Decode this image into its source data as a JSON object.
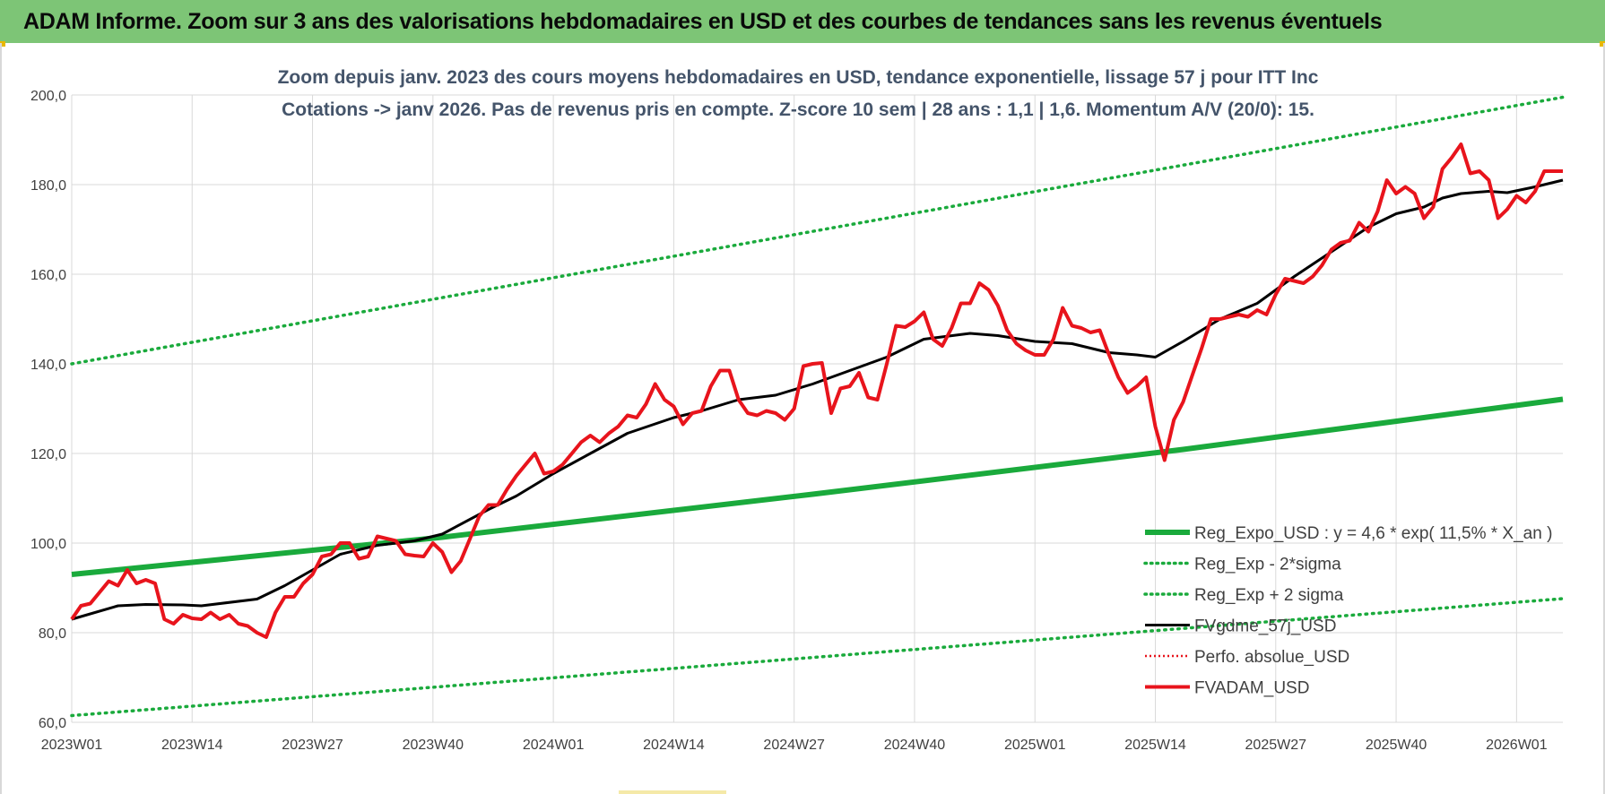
{
  "header": {
    "title": "ADAM Informe. Zoom sur 3 ans des valorisations hebdomadaires en USD et des courbes de tendances sans les revenus éventuels"
  },
  "colors": {
    "header_bg": "#7dc576",
    "trend_green": "#1aaa3c",
    "price_red": "#e8141c",
    "smooth_black": "#000000",
    "grid": "#d9d9d9",
    "axis_text": "#404040",
    "subtitle_text": "#44546a"
  },
  "chart_data": {
    "type": "line",
    "subtitle_line1": "Zoom depuis janv. 2023 des cours moyens hebdomadaires en USD, tendance exponentielle, lissage 57 j pour ITT Inc",
    "subtitle_line2": "Cotations -> janv 2026. Pas de revenus pris en compte. Z-score 10 sem  | 28 ans : 1,1 | 1,6. Momentum A/V (20/0): 15.",
    "ylim": [
      60,
      200
    ],
    "ytick_labels": [
      "60,0",
      "80,0",
      "100,0",
      "120,0",
      "140,0",
      "160,0",
      "180,0",
      "200,0"
    ],
    "ytick_values": [
      60,
      80,
      100,
      120,
      140,
      160,
      180,
      200
    ],
    "x_count": 162,
    "xtick_labels": [
      "2023W01",
      "2023W14",
      "2023W27",
      "2023W40",
      "2024W01",
      "2024W14",
      "2024W27",
      "2024W40",
      "2025W01",
      "2025W14",
      "2025W27",
      "2025W40",
      "2026W01"
    ],
    "xtick_indices": [
      0,
      13,
      26,
      39,
      52,
      65,
      78,
      91,
      104,
      117,
      130,
      143,
      156
    ],
    "legend": [
      {
        "key": "reg_expo",
        "label": "Reg_Expo_USD : y = 4,6 * exp( 11,5% *  X_an )",
        "style": "thick"
      },
      {
        "key": "reg_minus",
        "label": "Reg_Exp - 2*sigma",
        "style": "dotted"
      },
      {
        "key": "reg_plus",
        "label": "Reg_Exp + 2 sigma",
        "style": "dotted"
      },
      {
        "key": "fvgdme",
        "label": "FVgdme_57j_USD",
        "style": "solid"
      },
      {
        "key": "perfo",
        "label": "Perfo. absolue_USD",
        "style": "dotted-red"
      },
      {
        "key": "fvadam",
        "label": "FVADAM_USD",
        "style": "solid-red"
      }
    ],
    "series": [
      {
        "name": "Reg_Expo_USD",
        "key": "reg_expo",
        "x": [
          0,
          40,
          80,
          120,
          161
        ],
        "values": [
          93,
          101.3,
          110.9,
          120.9,
          132.1
        ]
      },
      {
        "name": "Reg_Exp - 2*sigma",
        "key": "reg_minus",
        "x": [
          0,
          161
        ],
        "values": [
          61.5,
          87.6
        ]
      },
      {
        "name": "Reg_Exp + 2 sigma",
        "key": "reg_plus",
        "x": [
          0,
          161
        ],
        "values": [
          140,
          199.5
        ]
      },
      {
        "name": "FVgdme_57j_USD",
        "key": "fvgdme",
        "x": [
          0,
          5,
          8,
          12,
          14,
          20,
          23,
          26,
          29,
          33,
          37,
          40,
          45,
          48,
          52,
          56,
          60,
          65,
          68,
          72,
          76,
          80,
          84,
          88,
          92,
          97,
          100,
          104,
          108,
          112,
          115,
          117,
          120,
          124,
          128,
          132,
          136,
          140,
          143,
          146,
          148,
          150,
          153,
          155,
          158,
          161
        ],
        "values": [
          83,
          86,
          86.3,
          86.2,
          86,
          87.5,
          90.5,
          94,
          97.5,
          99.5,
          100.5,
          102,
          107.5,
          110.5,
          115.5,
          120,
          124.5,
          128,
          129.5,
          132,
          133,
          135.5,
          138.5,
          141.5,
          145.5,
          146.8,
          146.3,
          145,
          144.5,
          142.5,
          142,
          141.5,
          145,
          150,
          153.5,
          159.5,
          165,
          170.5,
          173.5,
          175,
          177,
          178,
          178.5,
          178.2,
          179.5,
          181
        ]
      },
      {
        "name": "Perfo. absolue_USD",
        "key": "perfo",
        "x": [],
        "values": []
      },
      {
        "name": "FVADAM_USD",
        "key": "fvadam",
        "x": [
          0,
          1,
          2,
          3,
          4,
          5,
          6,
          7,
          8,
          9,
          10,
          11,
          12,
          13,
          14,
          15,
          16,
          17,
          18,
          19,
          20,
          21,
          22,
          23,
          24,
          25,
          26,
          27,
          28,
          29,
          30,
          31,
          32,
          33,
          34,
          35,
          36,
          37,
          38,
          39,
          40,
          41,
          42,
          43,
          44,
          45,
          46,
          47,
          48,
          49,
          50,
          51,
          52,
          53,
          54,
          55,
          56,
          57,
          58,
          59,
          60,
          61,
          62,
          63,
          64,
          65,
          66,
          67,
          68,
          69,
          70,
          71,
          72,
          73,
          74,
          75,
          76,
          77,
          78,
          79,
          80,
          81,
          82,
          83,
          84,
          85,
          86,
          87,
          88,
          89,
          90,
          91,
          92,
          93,
          94,
          95,
          96,
          97,
          98,
          99,
          100,
          101,
          102,
          103,
          104,
          105,
          106,
          107,
          108,
          109,
          110,
          111,
          112,
          113,
          114,
          115,
          116,
          117,
          118,
          119,
          120,
          121,
          122,
          123,
          124,
          125,
          126,
          127,
          128,
          129,
          130,
          131,
          132,
          133,
          134,
          135,
          136,
          137,
          138,
          139,
          140,
          141,
          142,
          143,
          144,
          145,
          146,
          147,
          148,
          149,
          150,
          151,
          152,
          153,
          154,
          155,
          156,
          157,
          158,
          159,
          160,
          161
        ],
        "values": [
          83,
          86,
          86.5,
          89,
          91.5,
          90.5,
          94,
          91,
          91.8,
          91,
          83,
          82,
          84,
          83.2,
          83,
          84.5,
          83,
          84,
          82,
          81.5,
          80,
          79,
          84.5,
          88,
          88,
          91,
          93,
          97,
          97.5,
          100,
          100,
          96.5,
          97,
          101.5,
          101,
          100.5,
          97.5,
          97.2,
          97,
          100,
          98,
          93.5,
          96,
          101,
          106,
          108.5,
          108.5,
          112,
          115,
          117.5,
          120,
          115.5,
          116,
          117.5,
          120,
          122.5,
          124,
          122.5,
          124.5,
          126,
          128.5,
          128,
          131,
          135.5,
          132,
          130.5,
          126.5,
          129,
          129.5,
          135,
          138.5,
          138.5,
          132,
          129,
          128.5,
          129.5,
          129,
          127.5,
          130,
          139.5,
          140,
          140.2,
          129,
          134.5,
          135,
          138,
          132.5,
          132,
          140,
          148.5,
          148.2,
          149.5,
          151.5,
          145.5,
          144,
          148,
          153.5,
          153.5,
          158,
          156.5,
          153,
          147.5,
          144.5,
          143,
          142,
          142,
          145.5,
          152.5,
          148.5,
          148,
          147,
          147.5,
          142,
          137,
          133.5,
          135,
          137,
          126,
          118.5,
          127.5,
          131.5,
          137.5,
          143.5,
          150,
          150,
          150.5,
          151,
          150.5,
          152,
          151,
          155.5,
          159,
          158.5,
          158,
          159.5,
          162,
          165.5,
          167,
          167.5,
          171.5,
          169.5,
          174,
          181,
          178,
          179.5,
          178,
          172.5,
          175,
          183.5,
          186,
          189,
          182.5,
          183,
          181,
          172.5,
          174.5,
          177.5,
          176,
          178.5,
          183,
          183,
          183
        ]
      }
    ]
  }
}
